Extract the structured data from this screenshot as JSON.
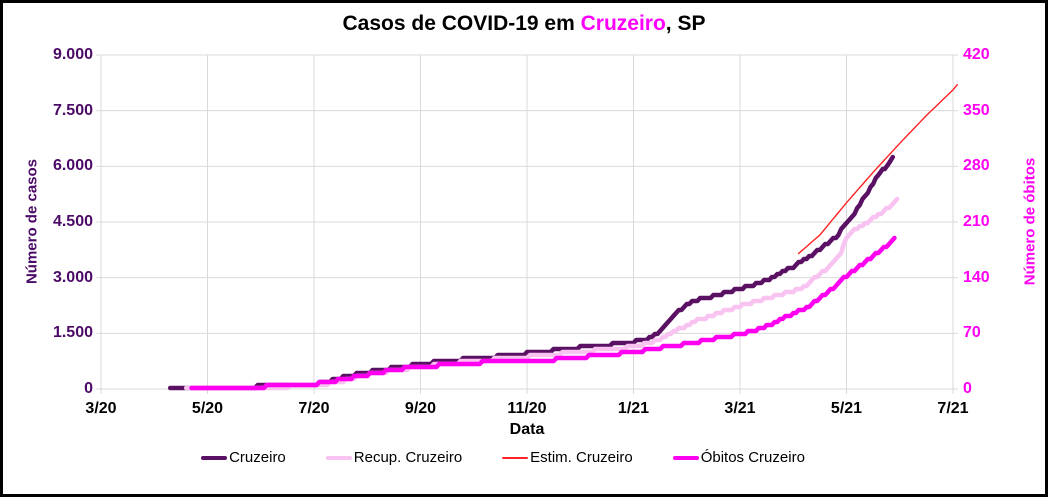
{
  "header": {
    "title_prefix": "Casos de COVID-19 em ",
    "title_highlight": "Cruzeiro",
    "title_suffix": ", SP",
    "title_highlight_color": "#ff00ff"
  },
  "colors": {
    "cases_axis": "#4b0a66",
    "deaths_axis": "#ff00f2",
    "grid": "#d9d9d9",
    "background": "#ffffff",
    "border": "#000000"
  },
  "chart_data": {
    "type": "line",
    "title": "Casos de COVID-19 em Cruzeiro, SP",
    "xlabel": "Data",
    "ylabel_left": "Número de casos",
    "ylabel_right": "Número de óbitos",
    "x_unit": "months since 2020-03",
    "x_range": [
      0,
      16
    ],
    "x_tick_step": 2,
    "x_tick_labels": [
      "3/20",
      "5/20",
      "7/20",
      "9/20",
      "11/20",
      "1/21",
      "3/21",
      "5/21",
      "7/21"
    ],
    "ylim_left": [
      0,
      9000
    ],
    "ylim_right": [
      0,
      420
    ],
    "y_tick_labels_left": [
      "9.000",
      "7.500",
      "6.000",
      "4.500",
      "3.000",
      "1.500",
      "0"
    ],
    "y_tick_values_left": [
      9000,
      7500,
      6000,
      4500,
      3000,
      1500,
      0
    ],
    "y_tick_labels_right": [
      "420",
      "350",
      "280",
      "210",
      "140",
      "70",
      "0"
    ],
    "y_tick_values_right": [
      420,
      350,
      280,
      210,
      140,
      70,
      0
    ],
    "grid": true,
    "legend_position": "bottom",
    "series": [
      {
        "name": "Cruzeiro",
        "color": "#5a1163",
        "axis": "left",
        "width": 4.5,
        "style": "step",
        "points": [
          [
            1.3,
            0
          ],
          [
            1.8,
            20
          ],
          [
            2,
            35
          ],
          [
            2.5,
            55
          ],
          [
            3,
            70
          ],
          [
            3.5,
            95
          ],
          [
            4,
            130
          ],
          [
            4.2,
            190
          ],
          [
            4.5,
            300
          ],
          [
            4.8,
            400
          ],
          [
            5,
            450
          ],
          [
            5.3,
            520
          ],
          [
            5.6,
            590
          ],
          [
            6,
            670
          ],
          [
            6.4,
            745
          ],
          [
            6.8,
            800
          ],
          [
            7.2,
            845
          ],
          [
            7.6,
            900
          ],
          [
            8,
            960
          ],
          [
            8.5,
            1040
          ],
          [
            9,
            1120
          ],
          [
            9.5,
            1190
          ],
          [
            10,
            1270
          ],
          [
            10.2,
            1330
          ],
          [
            10.4,
            1450
          ],
          [
            10.6,
            1720
          ],
          [
            10.8,
            2050
          ],
          [
            11,
            2280
          ],
          [
            11.2,
            2400
          ],
          [
            11.5,
            2500
          ],
          [
            11.8,
            2620
          ],
          [
            12,
            2700
          ],
          [
            12.3,
            2820
          ],
          [
            12.6,
            2990
          ],
          [
            13,
            3300
          ],
          [
            13.3,
            3550
          ],
          [
            13.6,
            3870
          ],
          [
            13.8,
            4100
          ],
          [
            14,
            4445
          ],
          [
            14.15,
            4750
          ],
          [
            14.3,
            5100
          ],
          [
            14.45,
            5420
          ],
          [
            14.6,
            5800
          ],
          [
            14.72,
            5960
          ],
          [
            14.8,
            6050
          ],
          [
            14.87,
            6215
          ]
        ]
      },
      {
        "name": "Recup. Cruzeiro",
        "color": "#f8c3f0",
        "axis": "left",
        "width": 4.5,
        "style": "step",
        "points": [
          [
            1.6,
            0
          ],
          [
            2,
            15
          ],
          [
            2.5,
            30
          ],
          [
            3,
            45
          ],
          [
            3.5,
            65
          ],
          [
            4,
            90
          ],
          [
            4.3,
            150
          ],
          [
            4.6,
            240
          ],
          [
            5,
            380
          ],
          [
            5.4,
            480
          ],
          [
            5.8,
            560
          ],
          [
            6.2,
            630
          ],
          [
            6.6,
            700
          ],
          [
            7,
            750
          ],
          [
            7.5,
            810
          ],
          [
            8,
            870
          ],
          [
            8.5,
            940
          ],
          [
            9,
            1010
          ],
          [
            9.5,
            1070
          ],
          [
            10,
            1140
          ],
          [
            10.3,
            1230
          ],
          [
            10.6,
            1400
          ],
          [
            10.9,
            1650
          ],
          [
            11.2,
            1850
          ],
          [
            11.5,
            2000
          ],
          [
            11.8,
            2140
          ],
          [
            12,
            2250
          ],
          [
            12.4,
            2400
          ],
          [
            12.8,
            2550
          ],
          [
            13.2,
            2750
          ],
          [
            13.5,
            3100
          ],
          [
            13.75,
            3400
          ],
          [
            13.9,
            3700
          ],
          [
            14,
            4050
          ],
          [
            14.1,
            4250
          ],
          [
            14.3,
            4400
          ],
          [
            14.5,
            4600
          ],
          [
            14.7,
            4800
          ],
          [
            14.85,
            4950
          ],
          [
            14.95,
            5100
          ]
        ]
      },
      {
        "name": "Estim. Cruzeiro",
        "color": "#ff2222",
        "axis": "left",
        "width": 1.4,
        "style": "smooth",
        "points": [
          [
            13.1,
            3650
          ],
          [
            13.5,
            4150
          ],
          [
            14,
            5020
          ],
          [
            14.5,
            5840
          ],
          [
            15,
            6620
          ],
          [
            15.5,
            7370
          ],
          [
            16,
            8060
          ],
          [
            16.08,
            8200
          ]
        ]
      },
      {
        "name": "Óbitos Cruzeiro",
        "color": "#ff00f0",
        "axis": "right",
        "width": 4.5,
        "style": "step",
        "points": [
          [
            1.7,
            0
          ],
          [
            2.5,
            1
          ],
          [
            3,
            3
          ],
          [
            3.5,
            4
          ],
          [
            4,
            6
          ],
          [
            4.3,
            9
          ],
          [
            4.6,
            13
          ],
          [
            5,
            18
          ],
          [
            5.4,
            23
          ],
          [
            5.8,
            27
          ],
          [
            6.2,
            29
          ],
          [
            6.6,
            31
          ],
          [
            7,
            33
          ],
          [
            7.5,
            34
          ],
          [
            8,
            35
          ],
          [
            8.5,
            37
          ],
          [
            9,
            40
          ],
          [
            9.5,
            43
          ],
          [
            10,
            46
          ],
          [
            10.5,
            52
          ],
          [
            11,
            57
          ],
          [
            11.5,
            63
          ],
          [
            12,
            69
          ],
          [
            12.3,
            74
          ],
          [
            12.6,
            82
          ],
          [
            13,
            95
          ],
          [
            13.3,
            104
          ],
          [
            13.6,
            120
          ],
          [
            13.8,
            130
          ],
          [
            14,
            142
          ],
          [
            14.2,
            152
          ],
          [
            14.4,
            162
          ],
          [
            14.6,
            172
          ],
          [
            14.8,
            183
          ],
          [
            14.9,
            190
          ]
        ]
      }
    ]
  },
  "layout_note": "cases and estimate read left axis; deaths read right axis"
}
